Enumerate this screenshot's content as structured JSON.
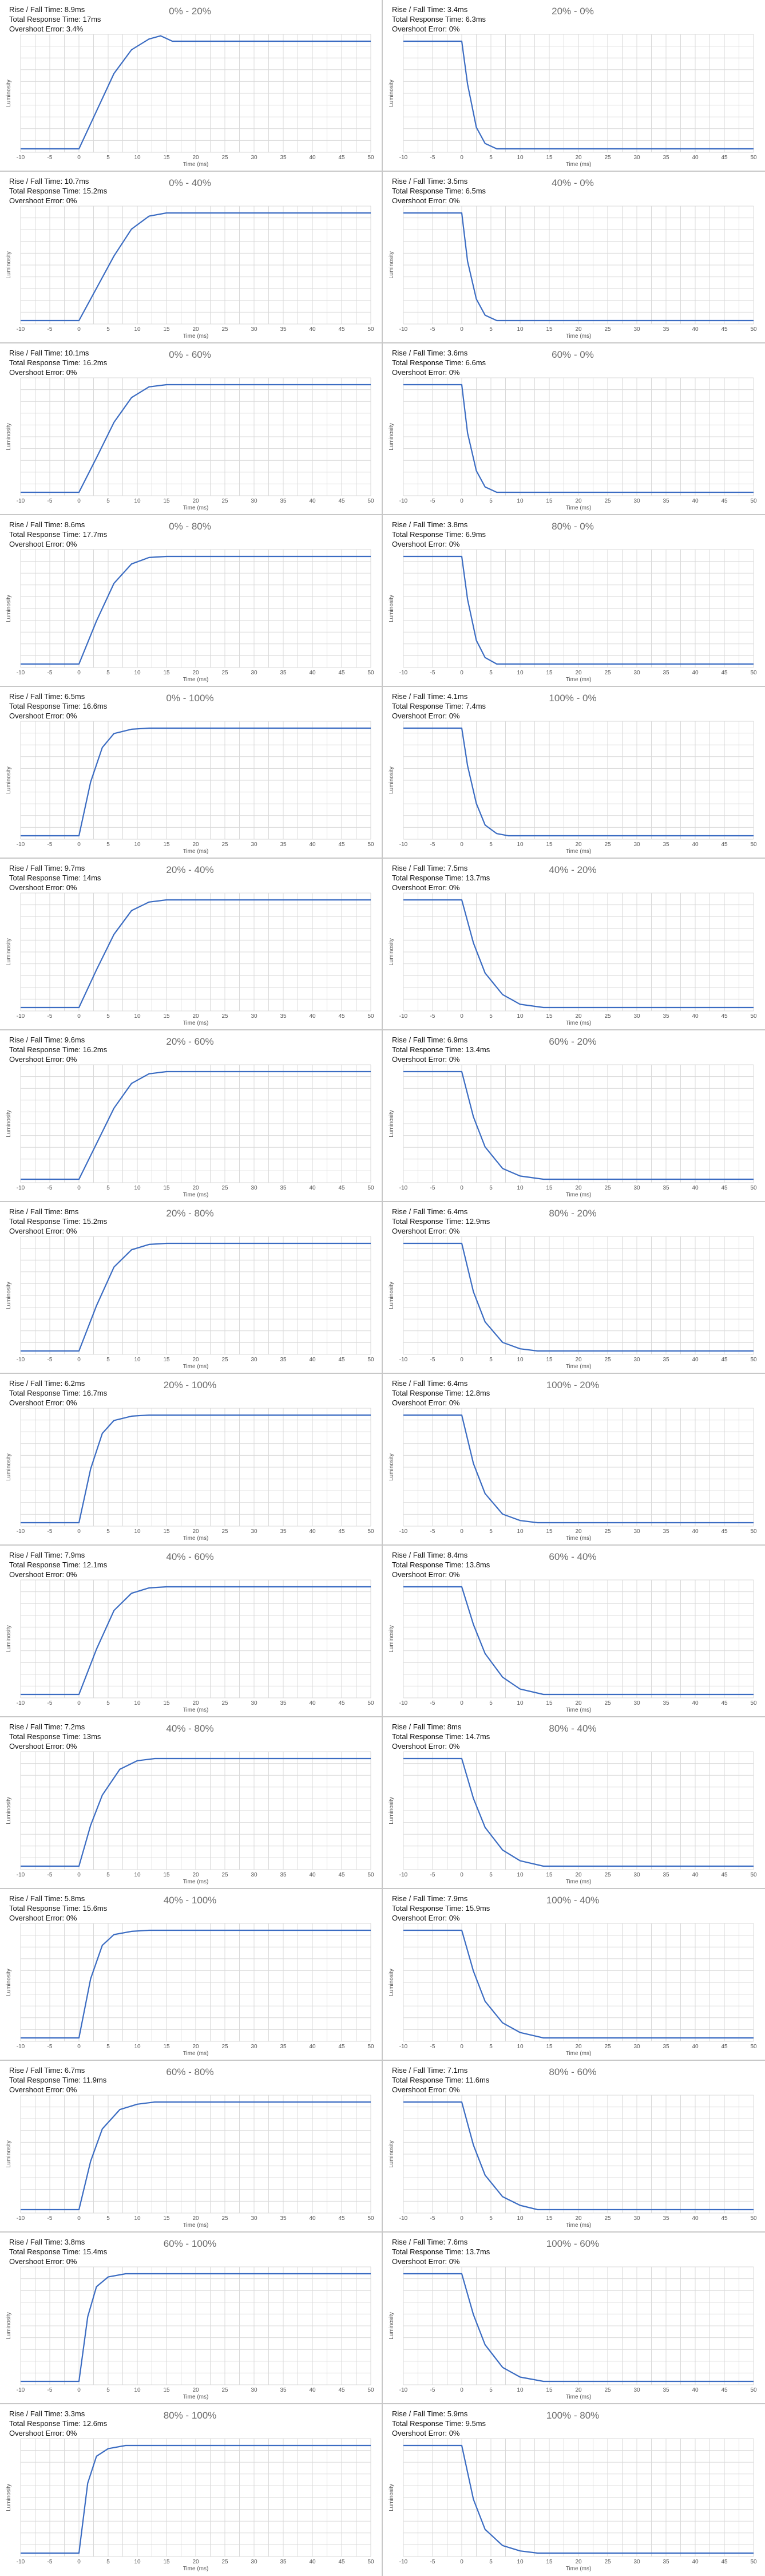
{
  "colors": {
    "line": "#3b6cc2",
    "grid": "#d9d9d9",
    "axis_text": "#555555",
    "title": "#6b6b6b",
    "separator": "#c8c8c8"
  },
  "chart_defaults": {
    "type": "line",
    "xlabel": "Time (ms)",
    "ylabel": "Luminosity",
    "xlim": [
      -10,
      50
    ],
    "x_ticks": [
      "-10",
      "-5",
      "0",
      "5",
      "10",
      "15",
      "20",
      "25",
      "30",
      "35",
      "40",
      "45",
      "50"
    ],
    "grid": true
  },
  "labels": {
    "rise_fall": "Rise / Fall Time:",
    "total": "Total Response Time:",
    "overshoot": "Overshoot Error:"
  },
  "chart_data": [
    {
      "title": "0% - 20%",
      "direction": "rise",
      "rise_fall_time": "8.9ms",
      "total_response_time": "17ms",
      "overshoot_error": "3.4%",
      "points": [
        [
          -10,
          0.0
        ],
        [
          0,
          0.0
        ],
        [
          3,
          0.35
        ],
        [
          6,
          0.7
        ],
        [
          9,
          0.92
        ],
        [
          12,
          1.02
        ],
        [
          14,
          1.05
        ],
        [
          16,
          1.0
        ],
        [
          18,
          1.0
        ],
        [
          50,
          1.0
        ]
      ]
    },
    {
      "title": "20% - 0%",
      "direction": "fall",
      "rise_fall_time": "3.4ms",
      "total_response_time": "6.3ms",
      "overshoot_error": "0%",
      "points": [
        [
          -10,
          1.0
        ],
        [
          0,
          1.0
        ],
        [
          1,
          0.6
        ],
        [
          2.5,
          0.2
        ],
        [
          4,
          0.05
        ],
        [
          6,
          0.0
        ],
        [
          50,
          0.0
        ]
      ]
    },
    {
      "title": "0% - 40%",
      "direction": "rise",
      "rise_fall_time": "10.7ms",
      "total_response_time": "15.2ms",
      "overshoot_error": "0%",
      "points": [
        [
          -10,
          0.0
        ],
        [
          0,
          0.0
        ],
        [
          3,
          0.3
        ],
        [
          6,
          0.6
        ],
        [
          9,
          0.85
        ],
        [
          12,
          0.97
        ],
        [
          15,
          1.0
        ],
        [
          50,
          1.0
        ]
      ]
    },
    {
      "title": "40% - 0%",
      "direction": "fall",
      "rise_fall_time": "3.5ms",
      "total_response_time": "6.5ms",
      "overshoot_error": "0%",
      "points": [
        [
          -10,
          1.0
        ],
        [
          0,
          1.0
        ],
        [
          1,
          0.55
        ],
        [
          2.5,
          0.2
        ],
        [
          4,
          0.05
        ],
        [
          6,
          0.0
        ],
        [
          50,
          0.0
        ]
      ]
    },
    {
      "title": "0% - 60%",
      "direction": "rise",
      "rise_fall_time": "10.1ms",
      "total_response_time": "16.2ms",
      "overshoot_error": "0%",
      "points": [
        [
          -10,
          0.0
        ],
        [
          0,
          0.0
        ],
        [
          3,
          0.32
        ],
        [
          6,
          0.65
        ],
        [
          9,
          0.88
        ],
        [
          12,
          0.98
        ],
        [
          15,
          1.0
        ],
        [
          50,
          1.0
        ]
      ]
    },
    {
      "title": "60% - 0%",
      "direction": "fall",
      "rise_fall_time": "3.6ms",
      "total_response_time": "6.6ms",
      "overshoot_error": "0%",
      "points": [
        [
          -10,
          1.0
        ],
        [
          0,
          1.0
        ],
        [
          1,
          0.55
        ],
        [
          2.5,
          0.2
        ],
        [
          4,
          0.05
        ],
        [
          6,
          0.0
        ],
        [
          50,
          0.0
        ]
      ]
    },
    {
      "title": "0% - 80%",
      "direction": "rise",
      "rise_fall_time": "8.6ms",
      "total_response_time": "17.7ms",
      "overshoot_error": "0%",
      "points": [
        [
          -10,
          0.0
        ],
        [
          0,
          0.0
        ],
        [
          3,
          0.4
        ],
        [
          6,
          0.75
        ],
        [
          9,
          0.93
        ],
        [
          12,
          0.99
        ],
        [
          15,
          1.0
        ],
        [
          50,
          1.0
        ]
      ]
    },
    {
      "title": "80% - 0%",
      "direction": "fall",
      "rise_fall_time": "3.8ms",
      "total_response_time": "6.9ms",
      "overshoot_error": "0%",
      "points": [
        [
          -10,
          1.0
        ],
        [
          0,
          1.0
        ],
        [
          1,
          0.6
        ],
        [
          2.5,
          0.22
        ],
        [
          4,
          0.06
        ],
        [
          6,
          0.0
        ],
        [
          50,
          0.0
        ]
      ]
    },
    {
      "title": "0% - 100%",
      "direction": "rise",
      "rise_fall_time": "6.5ms",
      "total_response_time": "16.6ms",
      "overshoot_error": "0%",
      "points": [
        [
          -10,
          0.0
        ],
        [
          0,
          0.0
        ],
        [
          2,
          0.5
        ],
        [
          4,
          0.82
        ],
        [
          6,
          0.95
        ],
        [
          9,
          0.99
        ],
        [
          12,
          1.0
        ],
        [
          50,
          1.0
        ]
      ]
    },
    {
      "title": "100% - 0%",
      "direction": "fall",
      "rise_fall_time": "4.1ms",
      "total_response_time": "7.4ms",
      "overshoot_error": "0%",
      "points": [
        [
          -10,
          1.0
        ],
        [
          0,
          1.0
        ],
        [
          1,
          0.65
        ],
        [
          2.5,
          0.3
        ],
        [
          4,
          0.1
        ],
        [
          6,
          0.02
        ],
        [
          8,
          0.0
        ],
        [
          50,
          0.0
        ]
      ]
    },
    {
      "title": "20% - 40%",
      "direction": "rise",
      "rise_fall_time": "9.7ms",
      "total_response_time": "14ms",
      "overshoot_error": "0%",
      "points": [
        [
          -10,
          0.0
        ],
        [
          0,
          0.0
        ],
        [
          3,
          0.35
        ],
        [
          6,
          0.68
        ],
        [
          9,
          0.9
        ],
        [
          12,
          0.98
        ],
        [
          15,
          1.0
        ],
        [
          50,
          1.0
        ]
      ]
    },
    {
      "title": "40% - 20%",
      "direction": "fall",
      "rise_fall_time": "7.5ms",
      "total_response_time": "13.7ms",
      "overshoot_error": "0%",
      "points": [
        [
          -10,
          1.0
        ],
        [
          0,
          1.0
        ],
        [
          2,
          0.6
        ],
        [
          4,
          0.32
        ],
        [
          7,
          0.12
        ],
        [
          10,
          0.03
        ],
        [
          14,
          0.0
        ],
        [
          50,
          0.0
        ]
      ]
    },
    {
      "title": "20% - 60%",
      "direction": "rise",
      "rise_fall_time": "9.6ms",
      "total_response_time": "16.2ms",
      "overshoot_error": "0%",
      "points": [
        [
          -10,
          0.0
        ],
        [
          0,
          0.0
        ],
        [
          3,
          0.33
        ],
        [
          6,
          0.66
        ],
        [
          9,
          0.89
        ],
        [
          12,
          0.98
        ],
        [
          15,
          1.0
        ],
        [
          50,
          1.0
        ]
      ]
    },
    {
      "title": "60% - 20%",
      "direction": "fall",
      "rise_fall_time": "6.9ms",
      "total_response_time": "13.4ms",
      "overshoot_error": "0%",
      "points": [
        [
          -10,
          1.0
        ],
        [
          0,
          1.0
        ],
        [
          2,
          0.58
        ],
        [
          4,
          0.3
        ],
        [
          7,
          0.1
        ],
        [
          10,
          0.03
        ],
        [
          14,
          0.0
        ],
        [
          50,
          0.0
        ]
      ]
    },
    {
      "title": "20% - 80%",
      "direction": "rise",
      "rise_fall_time": "8ms",
      "total_response_time": "15.2ms",
      "overshoot_error": "0%",
      "points": [
        [
          -10,
          0.0
        ],
        [
          0,
          0.0
        ],
        [
          3,
          0.42
        ],
        [
          6,
          0.78
        ],
        [
          9,
          0.94
        ],
        [
          12,
          0.99
        ],
        [
          15,
          1.0
        ],
        [
          50,
          1.0
        ]
      ]
    },
    {
      "title": "80% - 20%",
      "direction": "fall",
      "rise_fall_time": "6.4ms",
      "total_response_time": "12.9ms",
      "overshoot_error": "0%",
      "points": [
        [
          -10,
          1.0
        ],
        [
          0,
          1.0
        ],
        [
          2,
          0.55
        ],
        [
          4,
          0.27
        ],
        [
          7,
          0.08
        ],
        [
          10,
          0.02
        ],
        [
          13,
          0.0
        ],
        [
          50,
          0.0
        ]
      ]
    },
    {
      "title": "20% - 100%",
      "direction": "rise",
      "rise_fall_time": "6.2ms",
      "total_response_time": "16.7ms",
      "overshoot_error": "0%",
      "points": [
        [
          -10,
          0.0
        ],
        [
          0,
          0.0
        ],
        [
          2,
          0.5
        ],
        [
          4,
          0.83
        ],
        [
          6,
          0.95
        ],
        [
          9,
          0.99
        ],
        [
          12,
          1.0
        ],
        [
          50,
          1.0
        ]
      ]
    },
    {
      "title": "100% - 20%",
      "direction": "fall",
      "rise_fall_time": "6.4ms",
      "total_response_time": "12.8ms",
      "overshoot_error": "0%",
      "points": [
        [
          -10,
          1.0
        ],
        [
          0,
          1.0
        ],
        [
          2,
          0.55
        ],
        [
          4,
          0.27
        ],
        [
          7,
          0.08
        ],
        [
          10,
          0.02
        ],
        [
          13,
          0.0
        ],
        [
          50,
          0.0
        ]
      ]
    },
    {
      "title": "40% - 60%",
      "direction": "rise",
      "rise_fall_time": "7.9ms",
      "total_response_time": "12.1ms",
      "overshoot_error": "0%",
      "points": [
        [
          -10,
          0.0
        ],
        [
          0,
          0.0
        ],
        [
          3,
          0.42
        ],
        [
          6,
          0.78
        ],
        [
          9,
          0.94
        ],
        [
          12,
          0.99
        ],
        [
          15,
          1.0
        ],
        [
          50,
          1.0
        ]
      ]
    },
    {
      "title": "60% - 40%",
      "direction": "fall",
      "rise_fall_time": "8.4ms",
      "total_response_time": "13.8ms",
      "overshoot_error": "0%",
      "points": [
        [
          -10,
          1.0
        ],
        [
          0,
          1.0
        ],
        [
          2,
          0.65
        ],
        [
          4,
          0.38
        ],
        [
          7,
          0.16
        ],
        [
          10,
          0.05
        ],
        [
          14,
          0.0
        ],
        [
          50,
          0.0
        ]
      ]
    },
    {
      "title": "40% - 80%",
      "direction": "rise",
      "rise_fall_time": "7.2ms",
      "total_response_time": "13ms",
      "overshoot_error": "0%",
      "points": [
        [
          -10,
          0.0
        ],
        [
          0,
          0.0
        ],
        [
          2,
          0.38
        ],
        [
          4,
          0.66
        ],
        [
          7,
          0.9
        ],
        [
          10,
          0.98
        ],
        [
          13,
          1.0
        ],
        [
          50,
          1.0
        ]
      ]
    },
    {
      "title": "80% - 40%",
      "direction": "fall",
      "rise_fall_time": "8ms",
      "total_response_time": "14.7ms",
      "overshoot_error": "0%",
      "points": [
        [
          -10,
          1.0
        ],
        [
          0,
          1.0
        ],
        [
          2,
          0.63
        ],
        [
          4,
          0.36
        ],
        [
          7,
          0.15
        ],
        [
          10,
          0.05
        ],
        [
          14,
          0.0
        ],
        [
          50,
          0.0
        ]
      ]
    },
    {
      "title": "40% - 100%",
      "direction": "rise",
      "rise_fall_time": "5.8ms",
      "total_response_time": "15.6ms",
      "overshoot_error": "0%",
      "points": [
        [
          -10,
          0.0
        ],
        [
          0,
          0.0
        ],
        [
          2,
          0.55
        ],
        [
          4,
          0.86
        ],
        [
          6,
          0.96
        ],
        [
          9,
          0.99
        ],
        [
          12,
          1.0
        ],
        [
          50,
          1.0
        ]
      ]
    },
    {
      "title": "100% - 40%",
      "direction": "fall",
      "rise_fall_time": "7.9ms",
      "total_response_time": "15.9ms",
      "overshoot_error": "0%",
      "points": [
        [
          -10,
          1.0
        ],
        [
          0,
          1.0
        ],
        [
          2,
          0.62
        ],
        [
          4,
          0.34
        ],
        [
          7,
          0.14
        ],
        [
          10,
          0.05
        ],
        [
          14,
          0.0
        ],
        [
          50,
          0.0
        ]
      ]
    },
    {
      "title": "60% - 80%",
      "direction": "rise",
      "rise_fall_time": "6.7ms",
      "total_response_time": "11.9ms",
      "overshoot_error": "0%",
      "points": [
        [
          -10,
          0.0
        ],
        [
          0,
          0.0
        ],
        [
          2,
          0.45
        ],
        [
          4,
          0.75
        ],
        [
          7,
          0.93
        ],
        [
          10,
          0.98
        ],
        [
          13,
          1.0
        ],
        [
          50,
          1.0
        ]
      ]
    },
    {
      "title": "80% - 60%",
      "direction": "fall",
      "rise_fall_time": "7.1ms",
      "total_response_time": "11.6ms",
      "overshoot_error": "0%",
      "points": [
        [
          -10,
          1.0
        ],
        [
          0,
          1.0
        ],
        [
          2,
          0.6
        ],
        [
          4,
          0.32
        ],
        [
          7,
          0.12
        ],
        [
          10,
          0.04
        ],
        [
          13,
          0.0
        ],
        [
          50,
          0.0
        ]
      ]
    },
    {
      "title": "60% - 100%",
      "direction": "rise",
      "rise_fall_time": "3.8ms",
      "total_response_time": "15.4ms",
      "overshoot_error": "0%",
      "points": [
        [
          -10,
          0.0
        ],
        [
          0,
          0.0
        ],
        [
          1.5,
          0.6
        ],
        [
          3,
          0.88
        ],
        [
          5,
          0.97
        ],
        [
          8,
          1.0
        ],
        [
          50,
          1.0
        ]
      ]
    },
    {
      "title": "100% - 60%",
      "direction": "fall",
      "rise_fall_time": "7.6ms",
      "total_response_time": "13.7ms",
      "overshoot_error": "0%",
      "points": [
        [
          -10,
          1.0
        ],
        [
          0,
          1.0
        ],
        [
          2,
          0.62
        ],
        [
          4,
          0.34
        ],
        [
          7,
          0.13
        ],
        [
          10,
          0.04
        ],
        [
          14,
          0.0
        ],
        [
          50,
          0.0
        ]
      ]
    },
    {
      "title": "80% - 100%",
      "direction": "rise",
      "rise_fall_time": "3.3ms",
      "total_response_time": "12.6ms",
      "overshoot_error": "0%",
      "points": [
        [
          -10,
          0.0
        ],
        [
          0,
          0.0
        ],
        [
          1.5,
          0.65
        ],
        [
          3,
          0.9
        ],
        [
          5,
          0.97
        ],
        [
          8,
          1.0
        ],
        [
          50,
          1.0
        ]
      ]
    },
    {
      "title": "100% - 80%",
      "direction": "fall",
      "rise_fall_time": "5.9ms",
      "total_response_time": "9.5ms",
      "overshoot_error": "0%",
      "points": [
        [
          -10,
          1.0
        ],
        [
          0,
          1.0
        ],
        [
          2,
          0.5
        ],
        [
          4,
          0.22
        ],
        [
          7,
          0.07
        ],
        [
          10,
          0.02
        ],
        [
          13,
          0.0
        ],
        [
          50,
          0.0
        ]
      ]
    }
  ]
}
